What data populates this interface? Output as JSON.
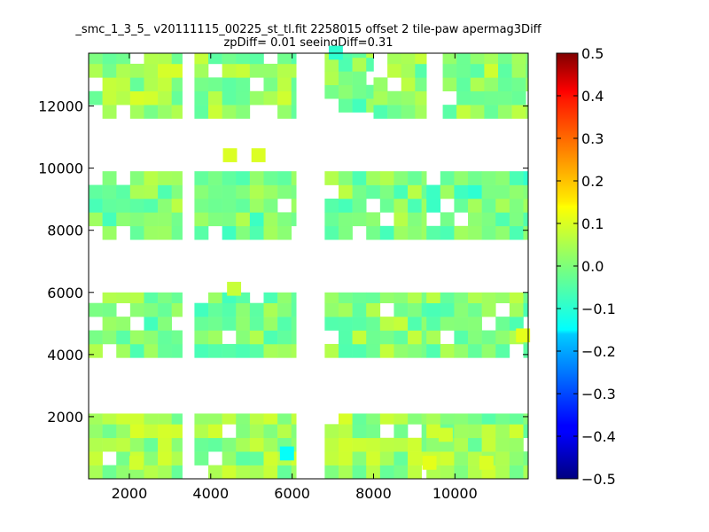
{
  "chart_data": {
    "type": "heatmap",
    "title": "_smc_1_3_5_ v20111115_00225_st_tl.fit 2258015 offset 2 tile-paw apermag3Diff",
    "subtitle": "zpDiff= 0.01 seeingDiff=0.31",
    "xlabel": "",
    "ylabel": "",
    "xlim": [
      1000,
      11800
    ],
    "ylim": [
      0,
      13700
    ],
    "x_ticks": [
      2000,
      4000,
      6000,
      8000,
      10000
    ],
    "x_tick_labels": [
      "2000",
      "4000",
      "6000",
      "8000",
      "10000"
    ],
    "y_ticks": [
      2000,
      4000,
      6000,
      8000,
      10000,
      12000
    ],
    "y_tick_labels": [
      "2000",
      "4000",
      "6000",
      "8000",
      "10000",
      "12000"
    ],
    "colorbar": {
      "colormap": "jet",
      "range": [
        -0.5,
        0.5
      ],
      "ticks": [
        0.5,
        0.4,
        0.3,
        0.2,
        0.1,
        0.0,
        -0.1,
        -0.2,
        -0.3,
        -0.4,
        -0.5
      ],
      "tick_labels": [
        "0.5",
        "0.4",
        "0.3",
        "0.2",
        "0.1",
        "0.0",
        "−0.1",
        "−0.2",
        "−0.3",
        "−0.4",
        "−0.5"
      ]
    },
    "cell_size": [
      340,
      440
    ],
    "blocks": [
      {
        "x_range": [
          1000,
          3300
        ],
        "y_range": [
          11600,
          13700
        ],
        "base": 0.03
      },
      {
        "x_range": [
          3600,
          6100
        ],
        "y_range": [
          11600,
          13700
        ],
        "base": 0.02
      },
      {
        "x_range": [
          6800,
          8000
        ],
        "y_range": [
          11800,
          13700
        ],
        "base": 0.0
      },
      {
        "x_range": [
          8000,
          9300
        ],
        "y_range": [
          11600,
          13700
        ],
        "base": 0.01
      },
      {
        "x_range": [
          9700,
          11800
        ],
        "y_range": [
          11600,
          13700
        ],
        "base": 0.02
      },
      {
        "x_range": [
          1000,
          3300
        ],
        "y_range": [
          7700,
          9900
        ],
        "base": 0.0
      },
      {
        "x_range": [
          3600,
          6100
        ],
        "y_range": [
          7700,
          9900
        ],
        "base": -0.01
      },
      {
        "x_range": [
          6800,
          9300
        ],
        "y_range": [
          7700,
          9900
        ],
        "base": 0.0
      },
      {
        "x_range": [
          9300,
          11800
        ],
        "y_range": [
          7700,
          9900
        ],
        "base": -0.02
      },
      {
        "x_range": [
          1000,
          3300
        ],
        "y_range": [
          3900,
          6000
        ],
        "base": 0.0
      },
      {
        "x_range": [
          3600,
          6100
        ],
        "y_range": [
          3900,
          6000
        ],
        "base": -0.01
      },
      {
        "x_range": [
          6800,
          9300
        ],
        "y_range": [
          3900,
          6000
        ],
        "base": 0.01
      },
      {
        "x_range": [
          9300,
          11800
        ],
        "y_range": [
          3900,
          6000
        ],
        "base": 0.0
      },
      {
        "x_range": [
          1000,
          3300
        ],
        "y_range": [
          0,
          2100
        ],
        "base": 0.03
      },
      {
        "x_range": [
          3600,
          6100
        ],
        "y_range": [
          0,
          2100
        ],
        "base": 0.02
      },
      {
        "x_range": [
          6800,
          9300
        ],
        "y_range": [
          0,
          2100
        ],
        "base": 0.03
      },
      {
        "x_range": [
          9300,
          11800
        ],
        "y_range": [
          0,
          2100
        ],
        "base": 0.02
      }
    ],
    "extra_cells": [
      {
        "x": 4300,
        "y": 10200,
        "value": 0.09
      },
      {
        "x": 5000,
        "y": 10200,
        "value": 0.09
      },
      {
        "x": 6900,
        "y": 13500,
        "value": -0.08
      },
      {
        "x": 5700,
        "y": 600,
        "value": -0.12
      },
      {
        "x": 9200,
        "y": 300,
        "value": 0.1
      },
      {
        "x": 11500,
        "y": 4400,
        "value": 0.1
      },
      {
        "x": 2000,
        "y": 300,
        "value": 0.08
      },
      {
        "x": 10600,
        "y": 300,
        "value": 0.09
      },
      {
        "x": 9600,
        "y": 1200,
        "value": 0.08
      },
      {
        "x": 4400,
        "y": 5900,
        "value": 0.07
      }
    ]
  }
}
